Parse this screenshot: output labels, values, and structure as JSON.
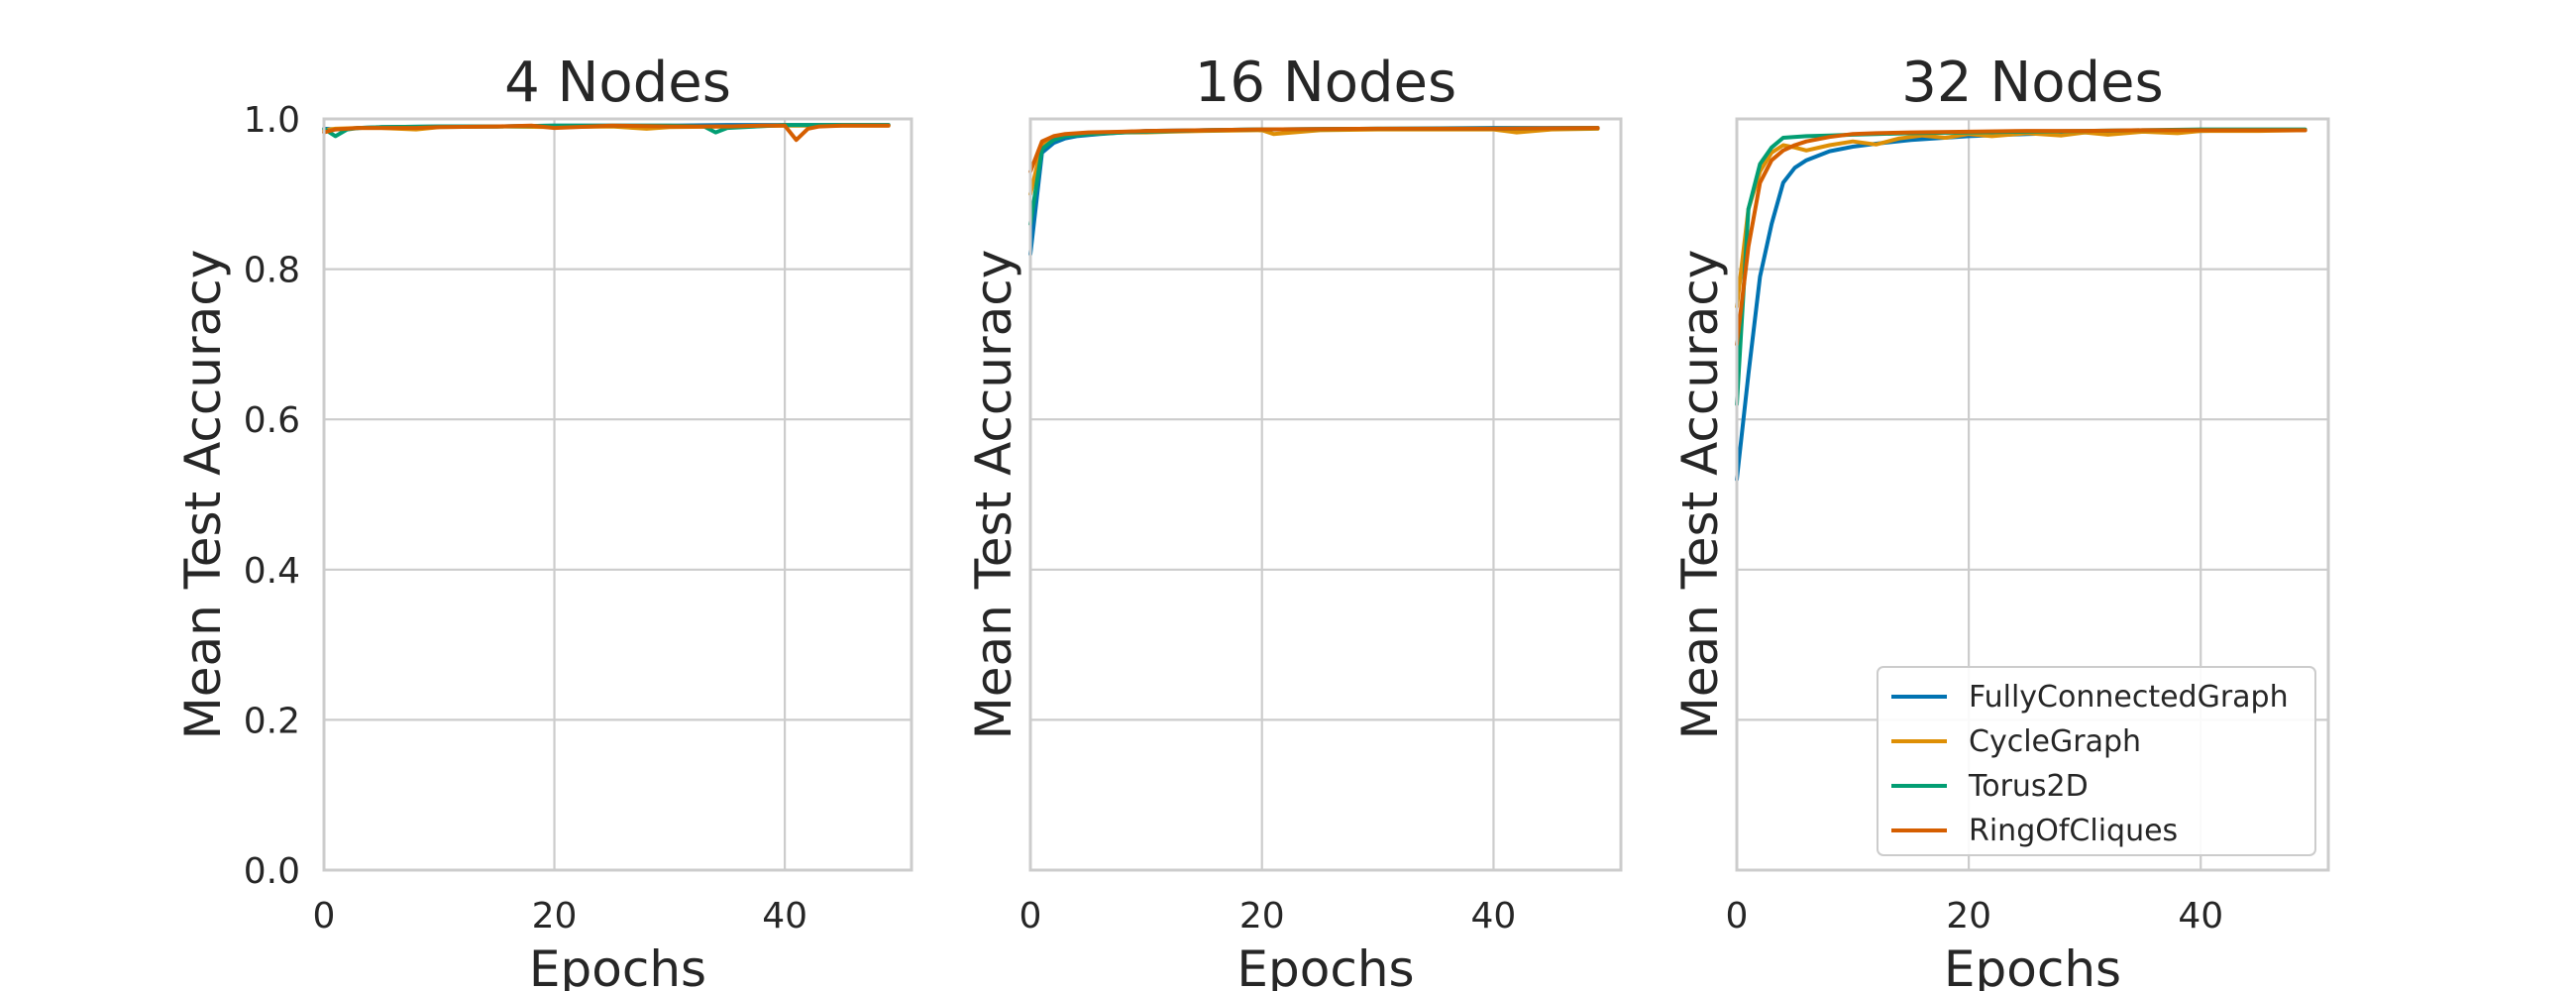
{
  "chart_data": [
    {
      "type": "line",
      "title": "4 Nodes",
      "xlabel": "Epochs",
      "ylabel": "Mean Test Accuracy",
      "xlim": [
        0,
        51
      ],
      "ylim": [
        0,
        1.0
      ],
      "xticks": [
        "0",
        "20",
        "40"
      ],
      "yticks": [
        "0.0",
        "0.2",
        "0.4",
        "0.6",
        "0.8",
        "1.0"
      ],
      "grid": true,
      "legend": false,
      "series": [
        {
          "name": "FullyConnectedGraph",
          "color": "#0173b2",
          "x": [
            0,
            1,
            3,
            5,
            10,
            15,
            20,
            25,
            30,
            35,
            40,
            45,
            49
          ],
          "y": [
            0.987,
            0.986,
            0.988,
            0.989,
            0.99,
            0.99,
            0.991,
            0.991,
            0.991,
            0.992,
            0.992,
            0.992,
            0.992
          ]
        },
        {
          "name": "CycleGraph",
          "color": "#de8f05",
          "x": [
            0,
            1,
            3,
            5,
            8,
            10,
            15,
            20,
            25,
            28,
            30,
            35,
            40,
            45,
            49
          ],
          "y": [
            0.985,
            0.987,
            0.988,
            0.988,
            0.986,
            0.989,
            0.99,
            0.989,
            0.99,
            0.987,
            0.989,
            0.99,
            0.991,
            0.991,
            0.991
          ]
        },
        {
          "name": "Torus2D",
          "color": "#029e73",
          "x": [
            0,
            1,
            2,
            3,
            5,
            10,
            15,
            20,
            25,
            30,
            33,
            34,
            35,
            40,
            45,
            49
          ],
          "y": [
            0.987,
            0.977,
            0.986,
            0.988,
            0.989,
            0.99,
            0.99,
            0.991,
            0.991,
            0.991,
            0.99,
            0.982,
            0.988,
            0.992,
            0.992,
            0.992
          ]
        },
        {
          "name": "RingOfCliques",
          "color": "#d55e00",
          "x": [
            0,
            1,
            3,
            5,
            8,
            10,
            15,
            18,
            20,
            25,
            30,
            35,
            38,
            40,
            41,
            42,
            43,
            45,
            49
          ],
          "y": [
            0.982,
            0.986,
            0.988,
            0.988,
            0.988,
            0.989,
            0.99,
            0.991,
            0.988,
            0.991,
            0.99,
            0.99,
            0.991,
            0.991,
            0.972,
            0.987,
            0.99,
            0.991,
            0.991
          ]
        }
      ]
    },
    {
      "type": "line",
      "title": "16 Nodes",
      "xlabel": "Epochs",
      "ylabel": "Mean Test Accuracy",
      "xlim": [
        0,
        51
      ],
      "ylim": [
        0,
        1.0
      ],
      "xticks": [
        "0",
        "20",
        "40"
      ],
      "yticks": [],
      "grid": true,
      "legend": false,
      "series": [
        {
          "name": "FullyConnectedGraph",
          "color": "#0173b2",
          "x": [
            0,
            1,
            2,
            3,
            4,
            6,
            8,
            10,
            15,
            20,
            30,
            40,
            49
          ],
          "y": [
            0.82,
            0.955,
            0.968,
            0.974,
            0.977,
            0.98,
            0.982,
            0.984,
            0.985,
            0.986,
            0.987,
            0.988,
            0.988
          ]
        },
        {
          "name": "CycleGraph",
          "color": "#de8f05",
          "x": [
            0,
            1,
            2,
            3,
            5,
            8,
            10,
            12,
            15,
            20,
            21,
            25,
            30,
            35,
            40,
            42,
            45,
            49
          ],
          "y": [
            0.9,
            0.965,
            0.975,
            0.978,
            0.98,
            0.982,
            0.982,
            0.983,
            0.984,
            0.985,
            0.98,
            0.985,
            0.986,
            0.986,
            0.986,
            0.982,
            0.986,
            0.987
          ]
        },
        {
          "name": "Torus2D",
          "color": "#029e73",
          "x": [
            0,
            1,
            2,
            3,
            5,
            8,
            10,
            15,
            20,
            30,
            40,
            49
          ],
          "y": [
            0.86,
            0.96,
            0.972,
            0.977,
            0.98,
            0.982,
            0.983,
            0.985,
            0.986,
            0.987,
            0.987,
            0.988
          ]
        },
        {
          "name": "RingOfCliques",
          "color": "#d55e00",
          "x": [
            0,
            1,
            2,
            3,
            5,
            8,
            10,
            15,
            20,
            30,
            40,
            49
          ],
          "y": [
            0.93,
            0.97,
            0.977,
            0.98,
            0.982,
            0.983,
            0.984,
            0.985,
            0.986,
            0.987,
            0.987,
            0.988
          ]
        }
      ]
    },
    {
      "type": "line",
      "title": "32 Nodes",
      "xlabel": "Epochs",
      "ylabel": "Mean Test Accuracy",
      "xlim": [
        0,
        51
      ],
      "ylim": [
        0,
        1.0
      ],
      "xticks": [
        "0",
        "20",
        "40"
      ],
      "yticks": [],
      "grid": true,
      "legend": true,
      "legend_position": "lower-right",
      "series": [
        {
          "name": "FullyConnectedGraph",
          "color": "#0173b2",
          "x": [
            0,
            1,
            2,
            3,
            4,
            5,
            6,
            8,
            10,
            12,
            15,
            20,
            25,
            30,
            35,
            40,
            45,
            49
          ],
          "y": [
            0.52,
            0.66,
            0.79,
            0.86,
            0.915,
            0.935,
            0.945,
            0.957,
            0.963,
            0.967,
            0.972,
            0.977,
            0.98,
            0.982,
            0.983,
            0.984,
            0.985,
            0.985
          ]
        },
        {
          "name": "CycleGraph",
          "color": "#de8f05",
          "x": [
            0,
            1,
            2,
            3,
            4,
            5,
            6,
            8,
            10,
            12,
            14,
            16,
            18,
            20,
            22,
            25,
            28,
            30,
            32,
            35,
            38,
            40,
            45,
            49
          ],
          "y": [
            0.75,
            0.88,
            0.93,
            0.955,
            0.965,
            0.962,
            0.958,
            0.965,
            0.97,
            0.966,
            0.974,
            0.978,
            0.975,
            0.98,
            0.977,
            0.981,
            0.978,
            0.982,
            0.979,
            0.983,
            0.981,
            0.984,
            0.984,
            0.985
          ]
        },
        {
          "name": "Torus2D",
          "color": "#029e73",
          "x": [
            0,
            1,
            2,
            3,
            4,
            6,
            8,
            10,
            12,
            15,
            20,
            25,
            30,
            35,
            40,
            45,
            49
          ],
          "y": [
            0.62,
            0.88,
            0.94,
            0.962,
            0.975,
            0.977,
            0.978,
            0.979,
            0.98,
            0.981,
            0.982,
            0.983,
            0.984,
            0.985,
            0.986,
            0.986,
            0.986
          ]
        },
        {
          "name": "RingOfCliques",
          "color": "#d55e00",
          "x": [
            0,
            1,
            2,
            3,
            4,
            5,
            6,
            8,
            10,
            12,
            15,
            20,
            25,
            30,
            35,
            40,
            45,
            49
          ],
          "y": [
            0.7,
            0.83,
            0.915,
            0.945,
            0.958,
            0.965,
            0.97,
            0.976,
            0.98,
            0.981,
            0.982,
            0.983,
            0.984,
            0.984,
            0.985,
            0.985,
            0.985,
            0.985
          ]
        }
      ]
    }
  ]
}
